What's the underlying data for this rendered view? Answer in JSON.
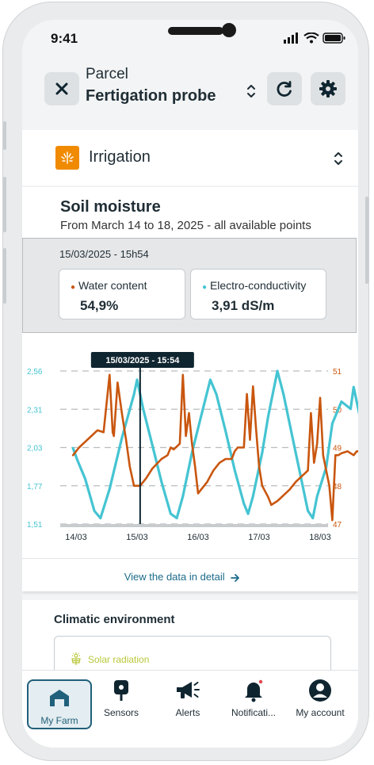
{
  "status_bar": {
    "time": "9:41"
  },
  "header": {
    "subtitle": "Parcel",
    "title": "Fertigation probe"
  },
  "category": {
    "label": "Irrigation"
  },
  "soil_moisture": {
    "title": "Soil moisture",
    "subtitle": "From March 14 to 18, 2025  - all available points",
    "selected_date": "15/03/2025 - 15h54",
    "water_content": {
      "label": "Water content",
      "value": "54,9%",
      "color": "#c9560f"
    },
    "electro": {
      "label": "Electro-conductivity",
      "value": "3,91 dS/m",
      "color": "#45c4d2"
    },
    "tooltip": "15/03/2025 - 15:54",
    "view_detail": "View the data in detail"
  },
  "chart_data": {
    "type": "line",
    "x": [
      "14/03",
      "15/03",
      "16/03",
      "17/03",
      "18/03"
    ],
    "y_left_ticks": [
      "2,56",
      "2,31",
      "2,03",
      "1,77",
      "1,51"
    ],
    "y_right_ticks": [
      "51",
      "50",
      "49",
      "48",
      "47"
    ],
    "ylim_left": [
      1.51,
      2.56
    ],
    "ylim_right": [
      47,
      51
    ],
    "series": [
      {
        "axis": "left",
        "color": "#45c4d2",
        "points": [
          [
            -0.05,
            2.03
          ],
          [
            0.02,
            1.95
          ],
          [
            0.15,
            1.82
          ],
          [
            0.3,
            1.6
          ],
          [
            0.4,
            1.55
          ],
          [
            0.55,
            1.75
          ],
          [
            0.75,
            2.1
          ],
          [
            0.95,
            2.4
          ],
          [
            1.0,
            2.5
          ],
          [
            1.1,
            2.3
          ],
          [
            1.25,
            2.05
          ],
          [
            1.4,
            1.8
          ],
          [
            1.55,
            1.58
          ],
          [
            1.65,
            1.55
          ],
          [
            1.75,
            1.7
          ],
          [
            1.9,
            2.0
          ],
          [
            2.05,
            2.25
          ],
          [
            2.2,
            2.5
          ],
          [
            2.3,
            2.4
          ],
          [
            2.45,
            2.15
          ],
          [
            2.6,
            1.88
          ],
          [
            2.75,
            1.65
          ],
          [
            2.82,
            1.58
          ],
          [
            2.9,
            1.7
          ],
          [
            3.05,
            2.0
          ],
          [
            3.15,
            2.25
          ],
          [
            3.3,
            2.56
          ],
          [
            3.4,
            2.4
          ],
          [
            3.55,
            2.1
          ],
          [
            3.7,
            1.8
          ],
          [
            3.8,
            1.6
          ],
          [
            3.88,
            1.55
          ],
          [
            3.95,
            1.7
          ],
          [
            4.1,
            1.9
          ],
          [
            4.2,
            2.2
          ],
          [
            4.35,
            2.35
          ],
          [
            4.5,
            2.3
          ],
          [
            4.55,
            2.45
          ],
          [
            4.7,
            2.15
          ],
          [
            4.8,
            2.03
          ]
        ]
      },
      {
        "axis": "right",
        "color": "#c9560f",
        "points": [
          [
            -0.05,
            48.8
          ],
          [
            0.05,
            49.0
          ],
          [
            0.15,
            49.15
          ],
          [
            0.25,
            49.3
          ],
          [
            0.35,
            49.45
          ],
          [
            0.45,
            49.4
          ],
          [
            0.55,
            50.9
          ],
          [
            0.6,
            49.4
          ],
          [
            0.62,
            49.3
          ],
          [
            0.68,
            50.7
          ],
          [
            0.75,
            49.9
          ],
          [
            0.82,
            49.2
          ],
          [
            0.88,
            48.5
          ],
          [
            0.95,
            48.0
          ],
          [
            1.05,
            48.0
          ],
          [
            1.15,
            48.2
          ],
          [
            1.25,
            48.45
          ],
          [
            1.4,
            48.7
          ],
          [
            1.5,
            48.8
          ],
          [
            1.55,
            49.0
          ],
          [
            1.6,
            48.95
          ],
          [
            1.7,
            49.1
          ],
          [
            1.75,
            50.9
          ],
          [
            1.8,
            49.3
          ],
          [
            1.85,
            49.9
          ],
          [
            1.9,
            49.1
          ],
          [
            1.95,
            48.5
          ],
          [
            2.0,
            47.8
          ],
          [
            2.05,
            47.9
          ],
          [
            2.15,
            48.1
          ],
          [
            2.25,
            48.4
          ],
          [
            2.35,
            48.6
          ],
          [
            2.45,
            48.7
          ],
          [
            2.55,
            48.7
          ],
          [
            2.6,
            48.9
          ],
          [
            2.65,
            49.0
          ],
          [
            2.75,
            49.0
          ],
          [
            2.8,
            50.4
          ],
          [
            2.85,
            49.2
          ],
          [
            2.9,
            50.6
          ],
          [
            2.95,
            49.5
          ],
          [
            3.0,
            48.5
          ],
          [
            3.05,
            48.0
          ],
          [
            3.15,
            47.7
          ],
          [
            3.2,
            47.5
          ],
          [
            3.3,
            47.6
          ],
          [
            3.4,
            47.75
          ],
          [
            3.5,
            47.9
          ],
          [
            3.6,
            48.1
          ],
          [
            3.7,
            48.25
          ],
          [
            3.8,
            48.4
          ],
          [
            3.85,
            49.9
          ],
          [
            3.9,
            48.6
          ],
          [
            3.95,
            49.1
          ],
          [
            4.0,
            50.3
          ],
          [
            4.05,
            48.8
          ],
          [
            4.15,
            48.0
          ],
          [
            4.2,
            47.1
          ],
          [
            4.25,
            48.8
          ],
          [
            4.3,
            48.8
          ],
          [
            4.35,
            48.85
          ],
          [
            4.45,
            48.9
          ],
          [
            4.55,
            48.8
          ],
          [
            4.6,
            48.9
          ],
          [
            4.75,
            48.9
          ]
        ]
      }
    ],
    "cursor_x": 1.05
  },
  "climatic": {
    "title": "Climatic environment",
    "solar_label": "Solar radiation",
    "solar_color": "#b9c83a"
  },
  "nav": {
    "items": [
      {
        "label": "My Farm"
      },
      {
        "label": "Sensors"
      },
      {
        "label": "Alerts"
      },
      {
        "label": "Notificati..."
      },
      {
        "label": "My account"
      }
    ]
  },
  "colors": {
    "accent": "#21607a",
    "text": "#1f2d35",
    "link": "#1c6b8a"
  }
}
